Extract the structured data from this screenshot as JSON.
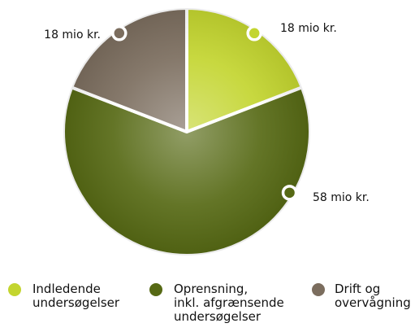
{
  "chart_data": {
    "type": "pie",
    "categories": [
      "Indledende\nundersøgelser",
      "Oprensning,\ninkl. afgrænsende\nundersøgelser",
      "Drift og\novervågning"
    ],
    "values": [
      18,
      58,
      18
    ],
    "value_labels": [
      "18 mio kr.",
      "58 mio kr.",
      "18 mio kr."
    ],
    "colors": [
      "#c3d52f",
      "#566914",
      "#7b6d5e"
    ]
  }
}
